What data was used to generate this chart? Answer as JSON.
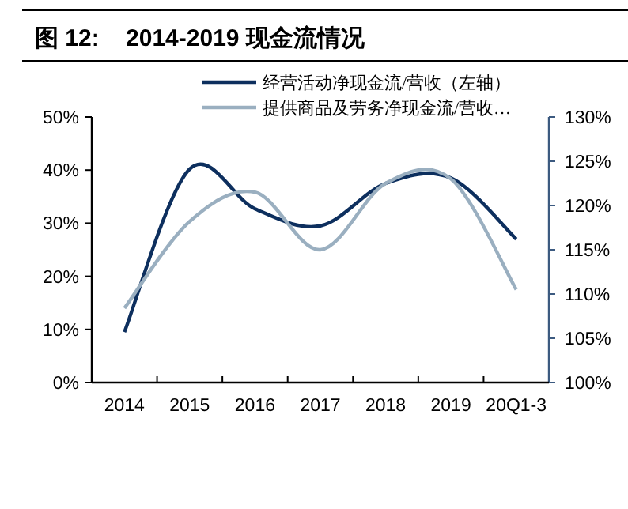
{
  "chart_data": {
    "type": "line",
    "title": "图 12:    2014-2019 现金流情况",
    "categories": [
      "2014",
      "2015",
      "2016",
      "2017",
      "2018",
      "2019",
      "20Q1-3"
    ],
    "series": [
      {
        "name": "经营活动净现金流/营收（左轴）",
        "color": "#0d2f5e",
        "values": [
          9.5,
          40.2,
          32.7,
          29.5,
          37.5,
          38.5,
          27
        ]
      },
      {
        "name": "提供商品及劳务净现金流/营收…",
        "color": "#9aafc0",
        "axis": "y2",
        "values": [
          108.4,
          118.2,
          121.5,
          115,
          122.5,
          123,
          110.5
        ]
      }
    ],
    "ylim": [
      0,
      50
    ],
    "yticks": [
      {
        "value": 0,
        "label": "0%"
      },
      {
        "value": 10,
        "label": "10%"
      },
      {
        "value": 20,
        "label": "20%"
      },
      {
        "value": 30,
        "label": "30%"
      },
      {
        "value": 40,
        "label": "40%"
      },
      {
        "value": 50,
        "label": "50%"
      }
    ],
    "y2lim": [
      100,
      130
    ],
    "y2ticks": [
      {
        "value": 100,
        "label": "100%"
      },
      {
        "value": 105,
        "label": "105%"
      },
      {
        "value": 110,
        "label": "110%"
      },
      {
        "value": 115,
        "label": "115%"
      },
      {
        "value": 120,
        "label": "120%"
      },
      {
        "value": 125,
        "label": "125%"
      },
      {
        "value": 130,
        "label": "130%"
      }
    ],
    "legend": "top",
    "grid": false,
    "line_style": "solid"
  }
}
